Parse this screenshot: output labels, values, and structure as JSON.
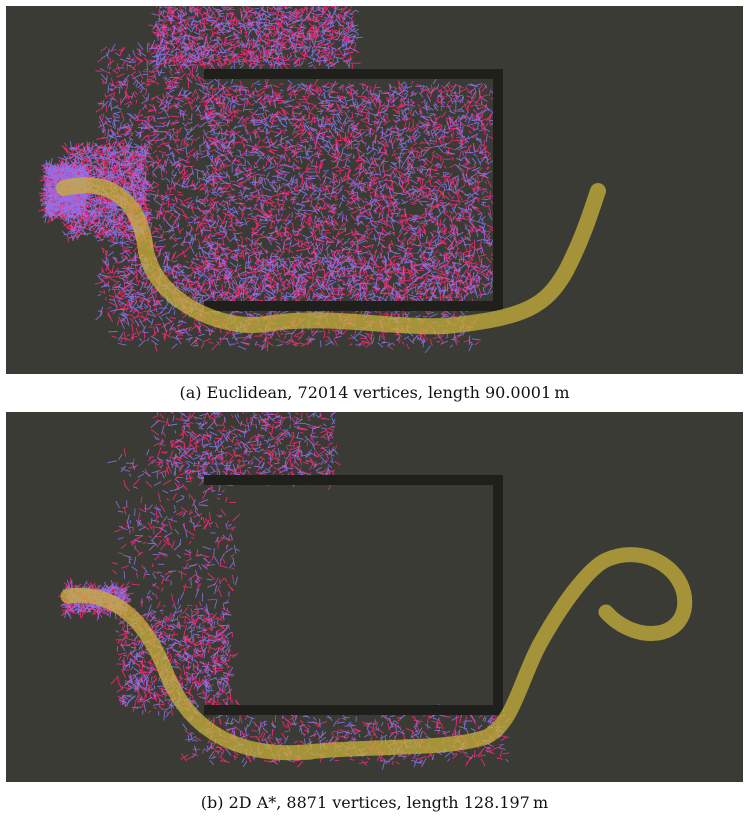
{
  "figure": {
    "subfigures": [
      {
        "id": "a",
        "caption": "(a) Euclidean, 72014 vertices, length 90.0001 m",
        "vertices": 72014,
        "path_length_m": 90.0001,
        "tree_density": "dense"
      },
      {
        "id": "b",
        "caption": "(b) 2D A*, 8871 vertices, length 128.197 m",
        "vertices": 8871,
        "path_length_m": 128.197,
        "tree_density": "sparse"
      }
    ]
  },
  "colors": {
    "background": "#3b3b35",
    "obstacle": "#1f1f1b",
    "tree_edge": "#ff2a7a",
    "tree_vertex": "#8a7dff",
    "path": "#c8b23a"
  }
}
